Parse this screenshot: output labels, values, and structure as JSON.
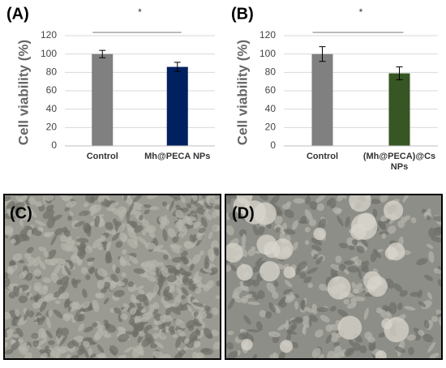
{
  "chart_data": [
    {
      "type": "bar",
      "title": "(A)",
      "y_label": "Cell viability (%)",
      "categories": [
        "Control",
        "Mh@PECA NPs"
      ],
      "values": [
        100,
        86
      ],
      "errors": [
        4,
        5
      ],
      "colors": [
        "#808080",
        "#002060"
      ],
      "ylim": [
        0,
        120
      ],
      "yticks": [
        0,
        20,
        40,
        60,
        80,
        100,
        120
      ],
      "grid": true,
      "annotation": "*"
    },
    {
      "type": "bar",
      "title": "(B)",
      "y_label": "Cell viability (%)",
      "categories": [
        "Control",
        "(Mh@PECA)@Cs NPs"
      ],
      "values": [
        100,
        79
      ],
      "errors": [
        8,
        7
      ],
      "colors": [
        "#808080",
        "#375623"
      ],
      "ylim": [
        0,
        120
      ],
      "yticks": [
        0,
        20,
        40,
        60,
        80,
        100,
        120
      ],
      "grid": true,
      "annotation": "*"
    }
  ],
  "panels": [
    {
      "label": "(C)"
    },
    {
      "label": "(D)"
    }
  ]
}
